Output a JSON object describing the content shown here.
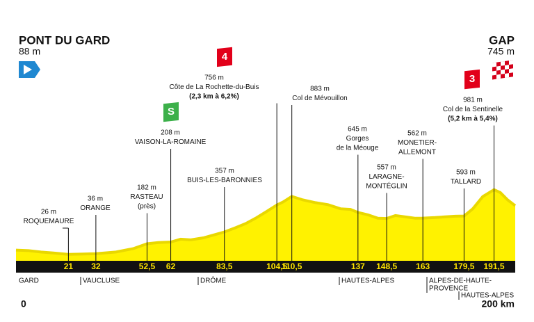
{
  "start": {
    "name": "PONT DU GARD",
    "elevation": "88 m"
  },
  "finish": {
    "name": "GAP",
    "elevation": "745 m"
  },
  "chart_data": {
    "type": "area",
    "color": "#fff200",
    "shade": "#e9d800",
    "x": [
      0,
      5,
      10,
      15,
      21,
      27,
      32,
      40,
      47,
      52.5,
      57,
      62,
      66,
      70,
      75,
      80,
      83.5,
      88,
      92,
      96,
      100,
      104.5,
      107,
      110.5,
      115,
      120,
      125,
      130,
      134,
      137,
      141,
      145,
      148.5,
      152,
      156,
      160,
      163,
      168,
      172,
      176,
      179.5,
      183,
      187,
      191.5,
      194,
      197,
      200
    ],
    "values": [
      88,
      80,
      60,
      45,
      26,
      30,
      36,
      60,
      110,
      182,
      200,
      208,
      250,
      240,
      270,
      320,
      357,
      420,
      480,
      560,
      650,
      756,
      800,
      883,
      830,
      790,
      760,
      700,
      690,
      645,
      610,
      560,
      557,
      600,
      580,
      560,
      562,
      570,
      580,
      590,
      593,
      700,
      880,
      981,
      940,
      830,
      745
    ],
    "xlim": [
      0,
      200
    ],
    "ylim": [
      -70,
      1000
    ],
    "xticks": [
      21,
      32,
      {
        "value": 52.5,
        "label": "52,5"
      },
      62,
      {
        "value": 83.5,
        "label": "83,5"
      },
      {
        "value": 104.5,
        "label": "104,5"
      },
      {
        "value": 110.5,
        "label": "110,5"
      },
      137,
      {
        "value": 148.5,
        "label": "148,5"
      },
      163,
      {
        "value": 179.5,
        "label": "179,5"
      },
      {
        "value": 191.5,
        "label": "191,5"
      }
    ],
    "x_start_label": "0",
    "x_end_label": "200 km",
    "annotations": [
      {
        "lines": [
          "26 m",
          "ROQUEMAURE"
        ]
      },
      {
        "lines": [
          "36 m",
          "ORANGE"
        ]
      },
      {
        "lines": [
          "182 m",
          "RASTEAU",
          "(près)"
        ]
      },
      {
        "lines": [
          "208 m",
          "VAISON-LA-ROMAINE"
        ],
        "badge": "S"
      },
      {
        "lines": [
          "357 m",
          "BUIS-LES-BARONNIES"
        ]
      },
      {
        "lines": [
          "756 m",
          "Côte de La Rochette-du-Buis"
        ],
        "note": "(2,3 km à 6,2%)",
        "badge": "4"
      },
      {
        "lines": [
          "883 m",
          "Col de Mévouillon"
        ]
      },
      {
        "lines": [
          "645 m",
          "Gorges",
          "de la Méouge"
        ]
      },
      {
        "lines": [
          "557 m",
          "LARAGNE-",
          "MONTÉGLIN"
        ]
      },
      {
        "lines": [
          "562 m",
          "MONETIER-",
          "ALLEMONT"
        ]
      },
      {
        "lines": [
          "593 m",
          "TALLARD"
        ]
      },
      {
        "lines": [
          "981 m",
          "Col de la Sentinelle"
        ],
        "note": "(5,2 km à 5,4%)",
        "badge": "3"
      }
    ],
    "regions": [
      {
        "lines": [
          "GARD"
        ]
      },
      {
        "lines": [
          "VAUCLUSE"
        ]
      },
      {
        "lines": [
          "DRÔME"
        ]
      },
      {
        "lines": [
          "HAUTES-ALPES"
        ]
      },
      {
        "lines": [
          "ALPES-DE-HAUTE-",
          "PROVENCE"
        ]
      },
      {
        "lines": [
          "HAUTES-ALPES"
        ]
      }
    ]
  }
}
